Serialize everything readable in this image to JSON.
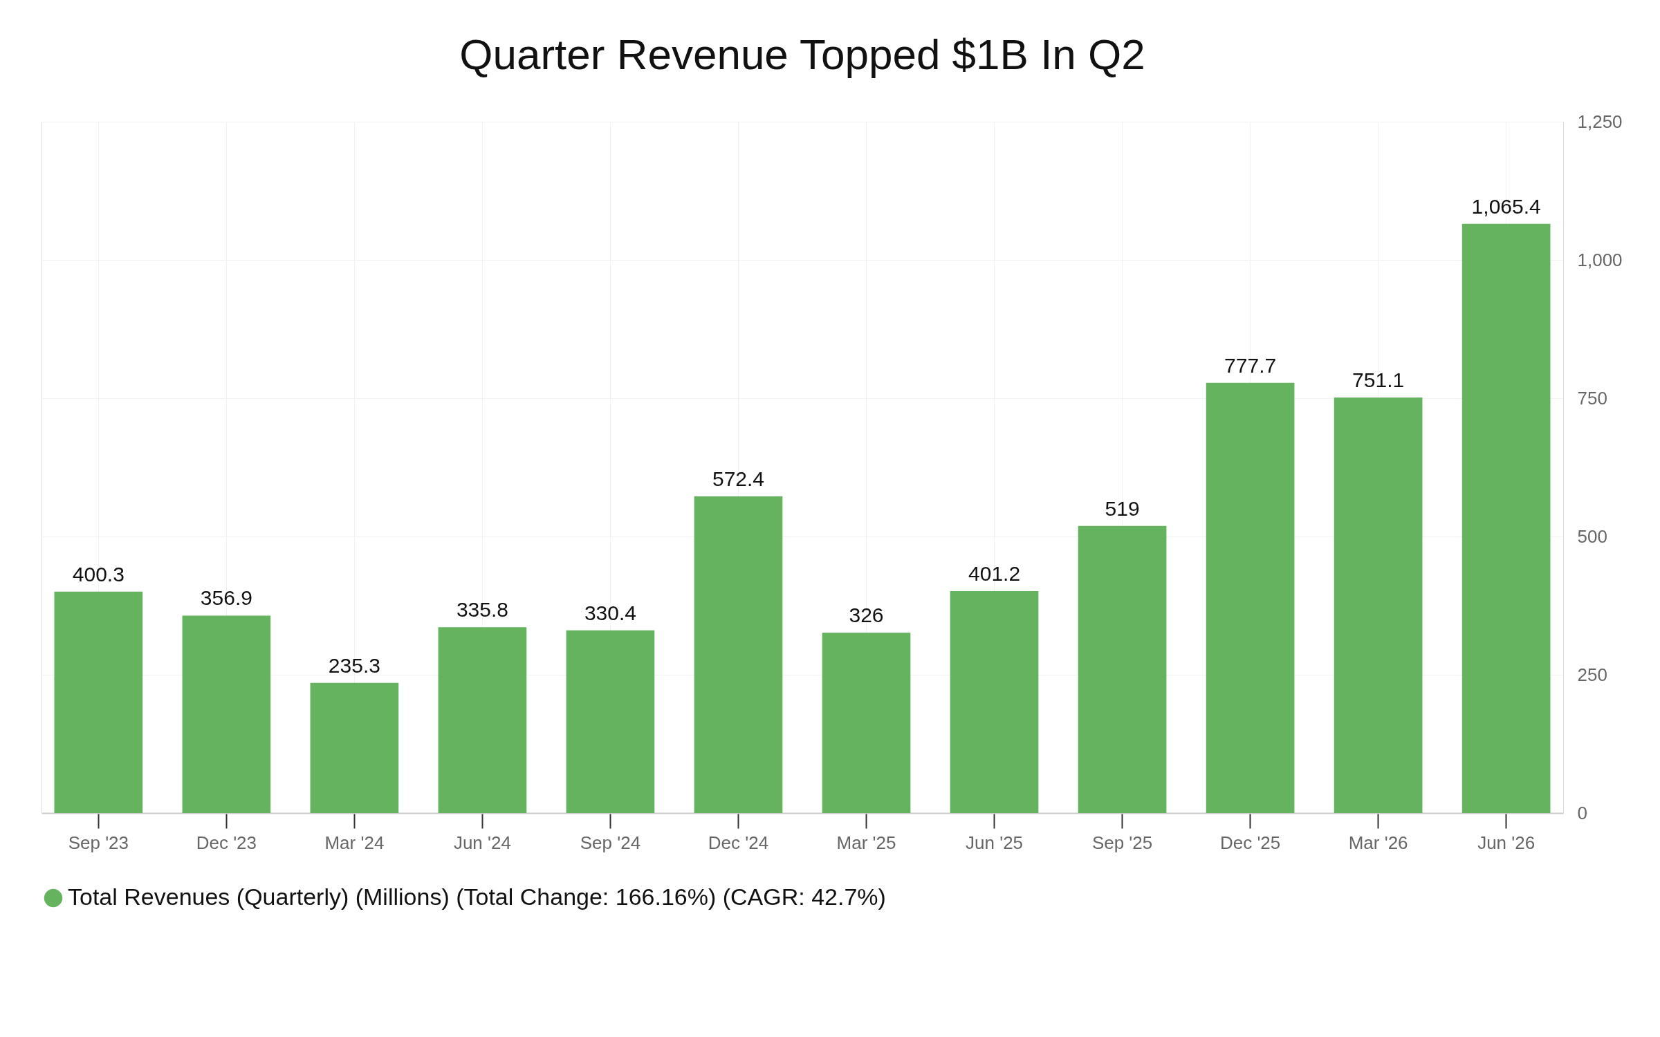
{
  "chart_data": {
    "type": "bar",
    "title": "Quarter Revenue Topped $1B In Q2",
    "categories": [
      "Sep '23",
      "Dec '23",
      "Mar '24",
      "Jun '24",
      "Sep '24",
      "Dec '24",
      "Mar '25",
      "Jun '25",
      "Sep '25",
      "Dec '25",
      "Mar '26",
      "Jun '26"
    ],
    "series": [
      {
        "name": "Total Revenues (Quarterly) (Millions) (Total Change: 166.16%) (CAGR: 42.7%)",
        "color": "#66b35f",
        "values": [
          400.3,
          356.9,
          235.3,
          335.8,
          330.4,
          572.4,
          326,
          401.2,
          519,
          777.7,
          751.1,
          1065.4
        ],
        "value_labels": [
          "400.3",
          "356.9",
          "235.3",
          "335.8",
          "330.4",
          "572.4",
          "326",
          "401.2",
          "519",
          "777.7",
          "751.1",
          "1,065.4"
        ]
      }
    ],
    "ylim": [
      0,
      1250
    ],
    "yticks": [
      0,
      {
        "value": 250,
        "label": "250"
      },
      500,
      750,
      {
        "value": 1000,
        "label": "1,000"
      },
      {
        "value": 1250,
        "label": "1,250"
      }
    ],
    "grid": true,
    "legend": "bottom left"
  }
}
